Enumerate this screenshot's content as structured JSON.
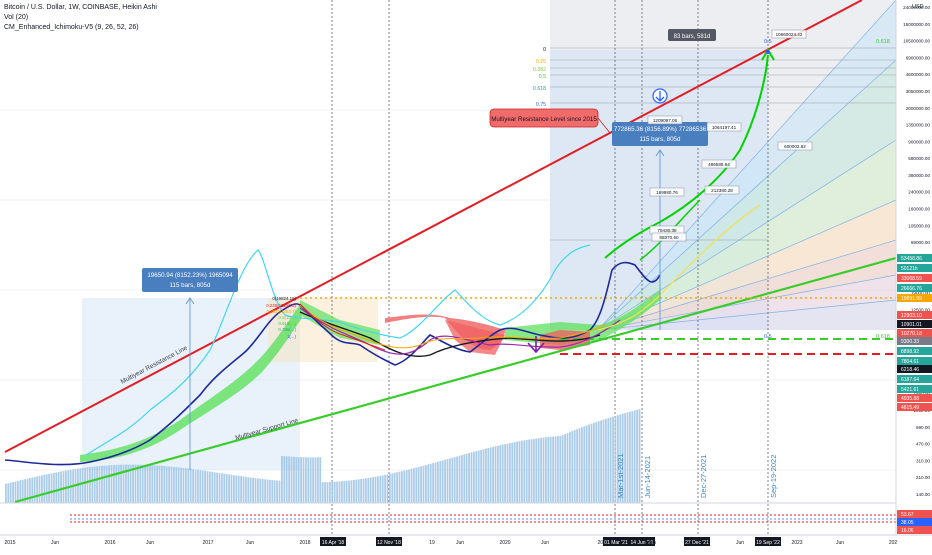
{
  "header": {
    "symbol": "Bitcoin / U.S. Dollar, 1W, COINBASE, Heikin Ashi",
    "vol_indicator": "Vol (20)",
    "ichimoku_indicator": "CM_Enhanced_Ichimoku-V5 (9, 26, 52, 26)"
  },
  "chart_data": {
    "type": "line",
    "currency_label": "USD",
    "x_ticks": [
      "2015",
      "Jun",
      "2016",
      "Jun",
      "2017",
      "Jun",
      "2018",
      "16 Apr '18",
      "12 Nov '18",
      "19",
      "Jun",
      "2020",
      "Jun",
      "2021",
      "01 Mar '21",
      "14 Jun '21",
      "Jun",
      "27 Dec '21",
      "Jun",
      "19 Sep '22",
      "2023",
      "Jun",
      "202"
    ],
    "y_ticks": [
      "24000000.00",
      "15000000.00",
      "10500000.00",
      "6900000.00",
      "4600000.00",
      "3050000.00",
      "2000000.00",
      "1350000.00",
      "900000.00",
      "580000.00",
      "380000.00",
      "240000.00",
      "160000.00",
      "105000.00",
      "69000.00",
      "45000.00",
      "29000.00",
      "19000.00",
      "12500.00",
      "8200.00",
      "5400.00",
      "3550.00",
      "2350.00",
      "1550.00",
      "1050.00",
      "690.00",
      "470.00",
      "310.00",
      "210.00",
      "140.00"
    ],
    "price_badges": [
      {
        "label": "53458.86",
        "color": "#26a69a"
      },
      {
        "label": "50121h",
        "color": "#26a69a"
      },
      {
        "label": "33068.59",
        "color": "#ef5350"
      },
      {
        "label": "26666.76",
        "color": "#26a69a"
      },
      {
        "label": "19891.99",
        "color": "#f7a600"
      },
      {
        "label": "12903.10",
        "color": "#ef5350"
      },
      {
        "label": "10901.01",
        "color": "#131722"
      },
      {
        "label": "10270.18",
        "color": "#ef5350"
      },
      {
        "label": "9300.33",
        "color": "#787b86"
      },
      {
        "label": "8898.92",
        "color": "#26a69a"
      },
      {
        "label": "7804.61",
        "color": "#26a69a"
      },
      {
        "label": "6218.46",
        "color": "#131722"
      },
      {
        "label": "6187.64",
        "color": "#26a69a"
      },
      {
        "label": "5421.61",
        "color": "#26a69a"
      },
      {
        "label": "4935.88",
        "color": "#ef5350"
      },
      {
        "label": "4815.49",
        "color": "#ef5350"
      }
    ],
    "bottom_badges": [
      {
        "label": "53.67",
        "color": "#ef5350"
      },
      {
        "label": "38.05",
        "color": "#2962ff"
      },
      {
        "label": "16.06",
        "color": "#ef5350"
      }
    ],
    "date_annotations": [
      "Mar-1st-2021",
      "Jun-14-2021",
      "Dec-27-2021",
      "Sep-19-2022"
    ],
    "trend_labels": [
      "Multiyear Resistance Line",
      "Multiyear Support Line"
    ],
    "measure_boxes": [
      {
        "line1": "19650.94 (8152.23%) 1965094",
        "line2": "115 bars, 805d"
      },
      {
        "line1": "772865.36 (8156.89%) 77286536",
        "line2": "115 bars, 805d"
      }
    ],
    "bars_tag": "83 bars, 581d",
    "callout": "Multiyear Resistance Level since 2015",
    "price_tags": [
      "10660024.42",
      "1209097.06",
      "1064197.41",
      "600002.82",
      "486588.84",
      "169980.76",
      "212380.28",
      "79430.38",
      "88370.60"
    ],
    "fib_levels_upper": [
      "0",
      "0.25",
      "0.382",
      "0.5",
      "0.618",
      "0.75"
    ],
    "fan_labels": [
      "0.5",
      "0.618"
    ],
    "fib_levels_left": [
      "0(19824.15)",
      "0.236(15250.3)",
      "0.382(11783.7)",
      "0.5(10...)",
      "0.618(...)",
      "0.786(...)",
      "1(...)"
    ],
    "fan_lower_labels": [
      "0.5",
      "0.618"
    ],
    "colors": {
      "resistance": "#e21d25",
      "support": "#39cc2b",
      "price": "#1e2a9c",
      "projection": "#00d400",
      "cyan": "#3fd7f0",
      "volume": "#9ec4e6",
      "cloud_red": "#f06060",
      "cloud_green": "#5ee05e"
    }
  }
}
